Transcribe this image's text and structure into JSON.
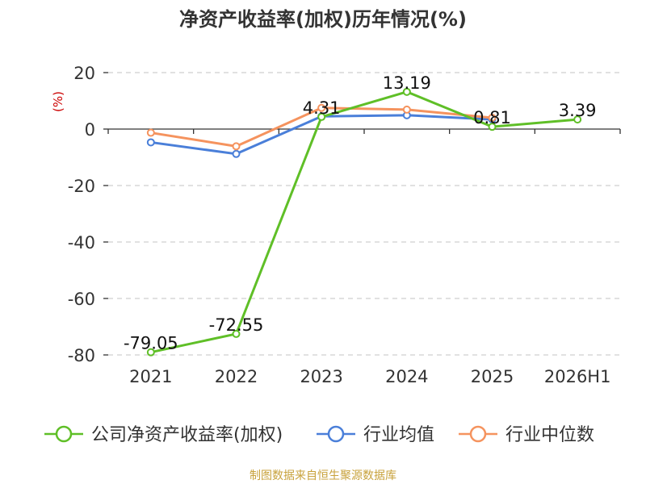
{
  "chart_data": {
    "type": "line",
    "title": "净资产收益率(加权)历年情况(%)",
    "ylabel": "(%)",
    "xlabel": "",
    "categories": [
      "2021",
      "2022",
      "2023",
      "2024",
      "2025",
      "2026H1"
    ],
    "ylim": [
      -80,
      20
    ],
    "yticks": [
      20,
      0,
      -20,
      -40,
      -60,
      -80
    ],
    "grid": true,
    "legend_position": "bottom",
    "series": [
      {
        "name": "公司净资产收益率(加权)",
        "color": "#5fbf27",
        "values": [
          -79.05,
          -72.55,
          4.31,
          13.19,
          0.81,
          3.39
        ],
        "labels": [
          "-79.05",
          "-72.55",
          "4.31",
          "13.19",
          "0.81",
          "3.39"
        ]
      },
      {
        "name": "行业均值",
        "color": "#4a7fd9",
        "values": [
          -4.7,
          -8.8,
          4.5,
          4.9,
          3.4,
          null
        ]
      },
      {
        "name": "行业中位数",
        "color": "#f5935e",
        "values": [
          -1.3,
          -6.1,
          7.5,
          6.9,
          4.0,
          null
        ]
      }
    ]
  },
  "source_note": "制图数据来自恒生聚源数据库"
}
